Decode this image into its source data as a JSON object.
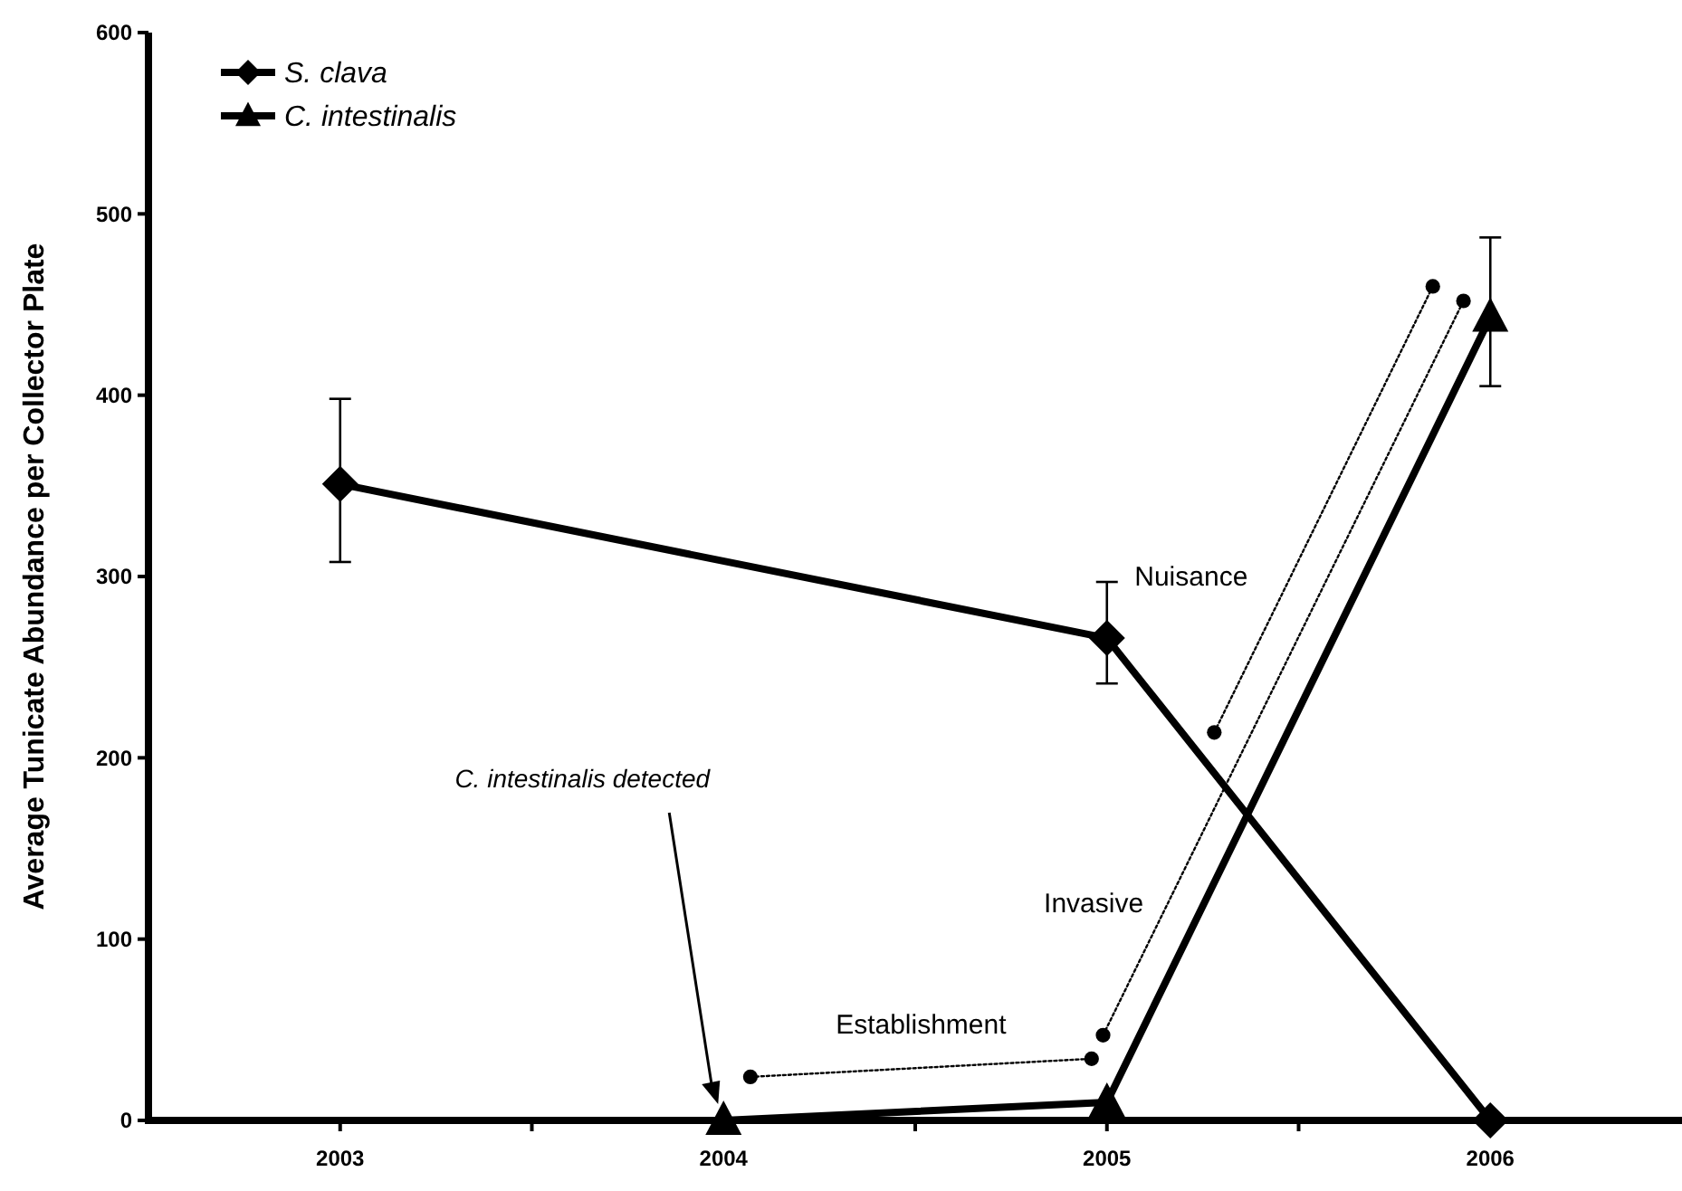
{
  "chart_data": {
    "type": "line",
    "ylabel": "Average Tunicate Abundance per Collector Plate",
    "xlim": [
      2002.5,
      2006.5
    ],
    "xticks": [
      2003,
      {
        "value": 2003.5,
        "label": null
      },
      2004,
      {
        "value": 2004.5,
        "label": null
      },
      2005,
      {
        "value": 2005.5,
        "label": null
      },
      2006
    ],
    "ylim": [
      0,
      600
    ],
    "yticks": [
      0,
      100,
      200,
      300,
      400,
      500,
      600
    ],
    "grid": false,
    "legend": "top left",
    "series": [
      {
        "name": "S. clava",
        "color": "#000000",
        "marker": "diamond",
        "line_style": "solid",
        "x": [
          2003,
          2005,
          2006
        ],
        "values": [
          351,
          266,
          0
        ],
        "errors": [
          [
            308,
            398
          ],
          [
            241,
            297
          ],
          null
        ]
      },
      {
        "name": "C. intestinalis",
        "color": "#000000",
        "marker": "triangle",
        "line_style": "solid",
        "x": [
          2004,
          2005,
          2006
        ],
        "values": [
          0,
          10,
          443
        ],
        "errors": [
          null,
          null,
          [
            405,
            487
          ]
        ]
      },
      {
        "color": "#000000",
        "marker": "circle",
        "line_style": "dotted",
        "x": [
          2004.07,
          2004.96
        ],
        "values": [
          24,
          34
        ]
      },
      {
        "color": "#000000",
        "marker": "circle",
        "line_style": "dotted",
        "x": [
          2004.99,
          2005.93
        ],
        "values": [
          47,
          452
        ]
      },
      {
        "color": "#000000",
        "marker": "circle",
        "line_style": "dotted",
        "x": [
          2005.28,
          2005.85
        ],
        "values": [
          214,
          460
        ]
      }
    ],
    "annotations": [
      "C. intestinalis detected",
      "Establishment",
      "Invasive",
      "Nuisance"
    ]
  }
}
